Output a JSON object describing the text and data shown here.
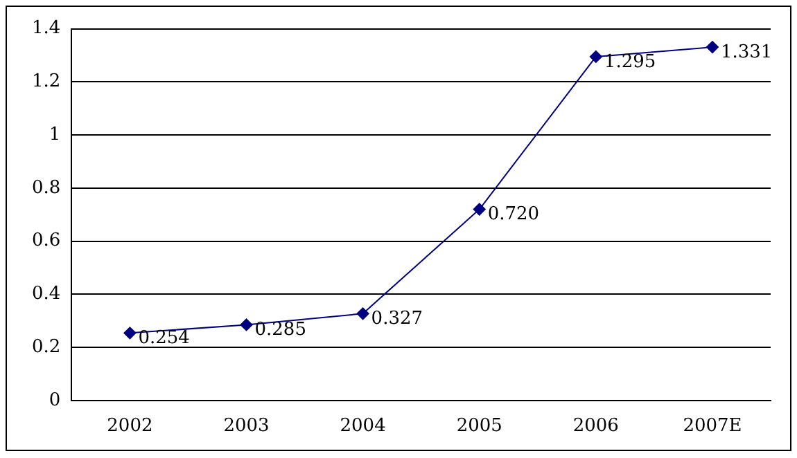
{
  "chart_data": {
    "type": "line",
    "categories": [
      "2002",
      "2003",
      "2004",
      "2005",
      "2006",
      "2007E"
    ],
    "series": [
      {
        "color": "#000080",
        "values": [
          0.254,
          0.285,
          0.327,
          0.72,
          1.295,
          1.331
        ],
        "value_labels": [
          "0.254",
          "0.285",
          "0.327",
          "0.720",
          "1.295",
          "1.331"
        ]
      }
    ],
    "ylim": [
      0,
      1.4
    ],
    "yticks": [
      0,
      0.2,
      0.4,
      0.6,
      0.8,
      1,
      1.2,
      1.4
    ],
    "grid": "y",
    "marker": "diamond",
    "line_style": "solid",
    "legend": false
  }
}
